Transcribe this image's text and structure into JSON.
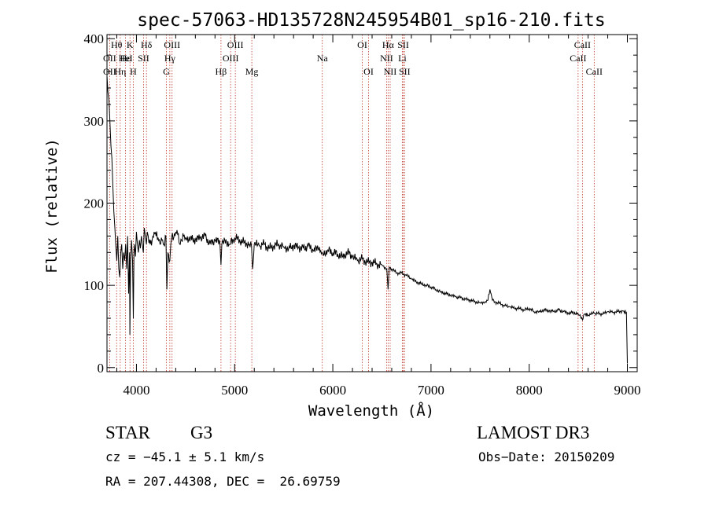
{
  "chart_data": {
    "type": "line",
    "title": "spec-57063-HD135728N245954B01_sp16-210.fits",
    "xlabel": "Wavelength (Å)",
    "ylabel": "Flux (relative)",
    "xlim": [
      3700,
      9100
    ],
    "ylim": [
      -5,
      405
    ],
    "xticks": [
      4000,
      5000,
      6000,
      7000,
      8000,
      9000
    ],
    "yticks": [
      0,
      100,
      200,
      300,
      400
    ],
    "x_tick_labels": [
      "4000",
      "5000",
      "6000",
      "7000",
      "8000",
      "9000"
    ],
    "y_tick_labels": [
      "0",
      "100",
      "200",
      "300",
      "400"
    ],
    "series": [
      {
        "name": "flux",
        "x": [
          3700,
          3710,
          3720,
          3730,
          3740,
          3750,
          3760,
          3770,
          3780,
          3790,
          3800,
          3810,
          3820,
          3830,
          3840,
          3850,
          3860,
          3870,
          3880,
          3890,
          3900,
          3910,
          3920,
          3930,
          3933,
          3940,
          3950,
          3960,
          3968,
          3975,
          3980,
          3990,
          4000,
          4010,
          4020,
          4030,
          4040,
          4050,
          4060,
          4070,
          4080,
          4090,
          4101,
          4110,
          4120,
          4140,
          4160,
          4180,
          4200,
          4220,
          4240,
          4260,
          4280,
          4300,
          4310,
          4320,
          4340,
          4350,
          4360,
          4380,
          4400,
          4420,
          4440,
          4460,
          4480,
          4500,
          4550,
          4600,
          4650,
          4700,
          4750,
          4800,
          4850,
          4861,
          4870,
          4900,
          4950,
          5000,
          5050,
          5100,
          5150,
          5172,
          5183,
          5200,
          5250,
          5300,
          5350,
          5400,
          5450,
          5500,
          5550,
          5600,
          5650,
          5700,
          5750,
          5800,
          5850,
          5890,
          5900,
          5950,
          6000,
          6050,
          6100,
          6150,
          6200,
          6250,
          6300,
          6350,
          6400,
          6450,
          6500,
          6550,
          6563,
          6575,
          6600,
          6650,
          6700,
          6750,
          6800,
          6850,
          6900,
          6950,
          7000,
          7050,
          7100,
          7150,
          7200,
          7250,
          7300,
          7350,
          7400,
          7450,
          7500,
          7550,
          7580,
          7600,
          7620,
          7650,
          7700,
          7750,
          7800,
          7850,
          7900,
          7950,
          8000,
          8050,
          8100,
          8150,
          8200,
          8250,
          8300,
          8350,
          8400,
          8450,
          8500,
          8542,
          8560,
          8600,
          8662,
          8700,
          8750,
          8800,
          8850,
          8900,
          8950,
          8990,
          9000
        ],
        "values": [
          355,
          335,
          325,
          300,
          270,
          255,
          220,
          190,
          170,
          148,
          130,
          160,
          120,
          110,
          140,
          150,
          120,
          140,
          130,
          150,
          120,
          160,
          90,
          140,
          40,
          130,
          155,
          130,
          60,
          140,
          150,
          135,
          165,
          150,
          140,
          155,
          145,
          160,
          150,
          140,
          170,
          160,
          150,
          165,
          160,
          150,
          155,
          165,
          160,
          158,
          150,
          155,
          150,
          160,
          95,
          140,
          130,
          150,
          160,
          158,
          165,
          162,
          150,
          155,
          160,
          158,
          157,
          155,
          158,
          160,
          150,
          155,
          152,
          125,
          150,
          155,
          150,
          158,
          155,
          152,
          150,
          148,
          120,
          150,
          148,
          150,
          145,
          148,
          150,
          147,
          145,
          148,
          146,
          145,
          148,
          142,
          145,
          140,
          138,
          143,
          140,
          138,
          135,
          140,
          135,
          130,
          132,
          128,
          128,
          126,
          125,
          120,
          95,
          122,
          120,
          115,
          115,
          112,
          108,
          104,
          102,
          100,
          98,
          95,
          92,
          90,
          88,
          86,
          85,
          83,
          82,
          80,
          79,
          80,
          82,
          95,
          85,
          80,
          78,
          75,
          74,
          72,
          72,
          70,
          72,
          68,
          68,
          70,
          69,
          68,
          70,
          68,
          66,
          67,
          65,
          58,
          65,
          64,
          66,
          66,
          65,
          68,
          67,
          68,
          69,
          67,
          5
        ]
      }
    ],
    "line_annotations": [
      {
        "label": "Hθ",
        "wavelength": 3798,
        "row": 1
      },
      {
        "label": "OII",
        "wavelength": 3727,
        "row": 2
      },
      {
        "label": "OII",
        "wavelength": 3727,
        "row": 3
      },
      {
        "label": "K",
        "wavelength": 3934,
        "row": 1
      },
      {
        "label": "Hε",
        "wavelength": 3889,
        "row": 2
      },
      {
        "label": "Hη",
        "wavelength": 3835,
        "row": 3
      },
      {
        "label": "Hδ",
        "wavelength": 4102,
        "row": 1
      },
      {
        "label": "HeI",
        "wavelength": 3889,
        "row": 2
      },
      {
        "label": "H",
        "wavelength": 3968,
        "row": 3
      },
      {
        "label": "SII",
        "wavelength": 4072,
        "row": 2
      },
      {
        "label": "OIII",
        "wavelength": 4363,
        "row": 1
      },
      {
        "label": "Hγ",
        "wavelength": 4340,
        "row": 2
      },
      {
        "label": "G",
        "wavelength": 4305,
        "row": 3
      },
      {
        "label": "OIII",
        "wavelength": 5007,
        "row": 1
      },
      {
        "label": "OIII",
        "wavelength": 4959,
        "row": 2
      },
      {
        "label": "Hβ",
        "wavelength": 4861,
        "row": 3
      },
      {
        "label": "Mg",
        "wavelength": 5175,
        "row": 3
      },
      {
        "label": "Na",
        "wavelength": 5893,
        "row": 2
      },
      {
        "label": "OI",
        "wavelength": 6300,
        "row": 1
      },
      {
        "label": "OI",
        "wavelength": 6364,
        "row": 3
      },
      {
        "label": "Hα",
        "wavelength": 6563,
        "row": 1
      },
      {
        "label": "NII",
        "wavelength": 6548,
        "row": 2
      },
      {
        "label": "NII",
        "wavelength": 6584,
        "row": 3
      },
      {
        "label": "SII",
        "wavelength": 6717,
        "row": 1
      },
      {
        "label": "Li",
        "wavelength": 6708,
        "row": 2
      },
      {
        "label": "SII",
        "wavelength": 6731,
        "row": 3
      },
      {
        "label": "CaII",
        "wavelength": 8542,
        "row": 1
      },
      {
        "label": "CaII",
        "wavelength": 8498,
        "row": 2
      },
      {
        "label": "CaII",
        "wavelength": 8662,
        "row": 3
      }
    ],
    "marker_lines": [
      3727,
      3798,
      3835,
      3889,
      3934,
      3968,
      4072,
      4102,
      4305,
      4340,
      4363,
      4861,
      4959,
      5007,
      5175,
      5893,
      6300,
      6364,
      6548,
      6563,
      6584,
      6708,
      6717,
      6731,
      8498,
      8542,
      8662
    ]
  },
  "info": {
    "object_class": "STAR",
    "subclass": "G3",
    "cz": "cz = −45.1 ± 5.1 km/s",
    "coords": "RA = 207.44308, DEC =  26.69759",
    "survey": "LAMOST DR3",
    "obs_date": "Obs−Date: 20150209"
  },
  "colors": {
    "axes": "#000000",
    "spectrum": "#000000",
    "marker": "#c0392b"
  }
}
